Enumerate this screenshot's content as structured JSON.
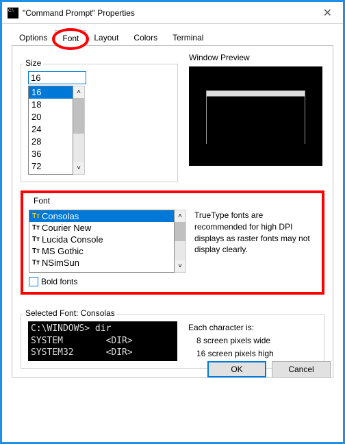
{
  "window": {
    "title": "\"Command Prompt\" Properties",
    "close": "✕"
  },
  "tabs": {
    "t0": "Options",
    "t1": "Font",
    "t2": "Layout",
    "t3": "Colors",
    "t4": "Terminal",
    "active": 1
  },
  "size": {
    "label": "Size",
    "value": "16",
    "items": [
      "16",
      "18",
      "20",
      "24",
      "28",
      "36",
      "72"
    ],
    "selected_index": 0
  },
  "preview": {
    "label": "Window Preview"
  },
  "font": {
    "label": "Font",
    "items": [
      "Consolas",
      "Courier New",
      "Lucida Console",
      "MS Gothic",
      "NSimSun"
    ],
    "selected_index": 0,
    "desc": "TrueType fonts are recommended for high DPI displays as raster fonts may not display clearly.",
    "bold_label": "Bold fonts"
  },
  "selected": {
    "label": "Selected Font: Consolas",
    "console_text": "C:\\WINDOWS> dir\nSYSTEM        <DIR>\nSYSTEM32      <DIR>",
    "char_label": "Each character is:",
    "char_w": "8 screen pixels wide",
    "char_h": "16 screen pixels high"
  },
  "buttons": {
    "ok": "OK",
    "cancel": "Cancel"
  },
  "colors": {
    "accent": "#0078d7",
    "highlight_ring": "#f00",
    "window_border": "#1e90e8"
  }
}
